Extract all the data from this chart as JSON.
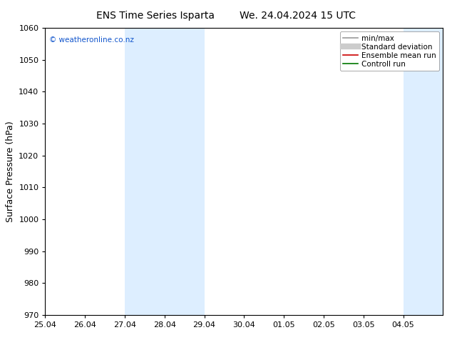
{
  "title_left": "ENS Time Series Isparta",
  "title_right": "We. 24.04.2024 15 UTC",
  "ylabel": "Surface Pressure (hPa)",
  "watermark": "© weatheronline.co.nz",
  "ylim": [
    970,
    1060
  ],
  "yticks": [
    970,
    980,
    990,
    1000,
    1010,
    1020,
    1030,
    1040,
    1050,
    1060
  ],
  "x_labels": [
    "25.04",
    "26.04",
    "27.04",
    "28.04",
    "29.04",
    "30.04",
    "01.05",
    "02.05",
    "03.05",
    "04.05"
  ],
  "shade_bands": [
    {
      "start": 2,
      "end": 4
    },
    {
      "start": 9,
      "end": 10
    }
  ],
  "shade_color": "#ddeeff",
  "background_color": "#ffffff",
  "legend_items": [
    {
      "label": "min/max",
      "color": "#999999",
      "lw": 1.2
    },
    {
      "label": "Standard deviation",
      "color": "#cccccc",
      "lw": 6
    },
    {
      "label": "Ensemble mean run",
      "color": "#cc0000",
      "lw": 1.2
    },
    {
      "label": "Controll run",
      "color": "#007700",
      "lw": 1.2
    }
  ],
  "title_fontsize": 10,
  "label_fontsize": 9,
  "tick_fontsize": 8,
  "legend_fontsize": 7.5,
  "watermark_color": "#1155cc",
  "figsize": [
    6.34,
    4.9
  ],
  "dpi": 100
}
